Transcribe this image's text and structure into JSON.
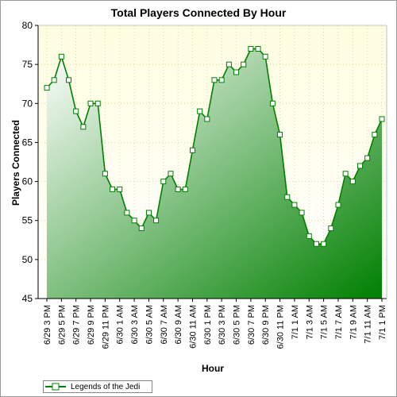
{
  "chart_data": {
    "type": "area",
    "title": "Total Players Connected By Hour",
    "xlabel": "Hour",
    "ylabel": "Players Connected",
    "ylim": [
      45,
      80
    ],
    "yticks": [
      45,
      50,
      55,
      60,
      65,
      70,
      75,
      80
    ],
    "grid": true,
    "legend_position": "bottom-left",
    "x_tick_labels": [
      "6/29 3 PM",
      "6/29 5 PM",
      "6/29 7 PM",
      "6/29 9 PM",
      "6/29 11 PM",
      "6/30 1 AM",
      "6/30 3 AM",
      "6/30 5 AM",
      "6/30 7 AM",
      "6/30 9 AM",
      "6/30 11 AM",
      "6/30 1 PM",
      "6/30 3 PM",
      "6/30 5 PM",
      "6/30 7 PM",
      "6/30 9 PM",
      "6/30 11 PM",
      "7/1 1 AM",
      "7/1 3 AM",
      "7/1 5 AM",
      "7/1 7 AM",
      "7/1 9 AM",
      "7/1 11 AM",
      "7/1 1 PM"
    ],
    "series": [
      {
        "name": "Legends of the Jedi",
        "values": [
          72,
          73,
          76,
          73,
          69,
          67,
          70,
          70,
          61,
          59,
          59,
          56,
          55,
          54,
          56,
          55,
          60,
          61,
          59,
          59,
          64,
          69,
          68,
          73,
          73,
          75,
          74,
          75,
          77,
          77,
          76,
          70,
          66,
          58,
          57,
          56,
          53,
          52,
          52,
          54,
          57,
          61,
          60,
          62,
          63,
          66,
          68
        ]
      }
    ],
    "colors": {
      "line": "#008000",
      "area_light": "#ffffff",
      "area_dark": "#008000",
      "plot_bg_top": "#fffde0",
      "plot_bg_bottom": "#ffffff",
      "grid": "#cccc99"
    }
  }
}
